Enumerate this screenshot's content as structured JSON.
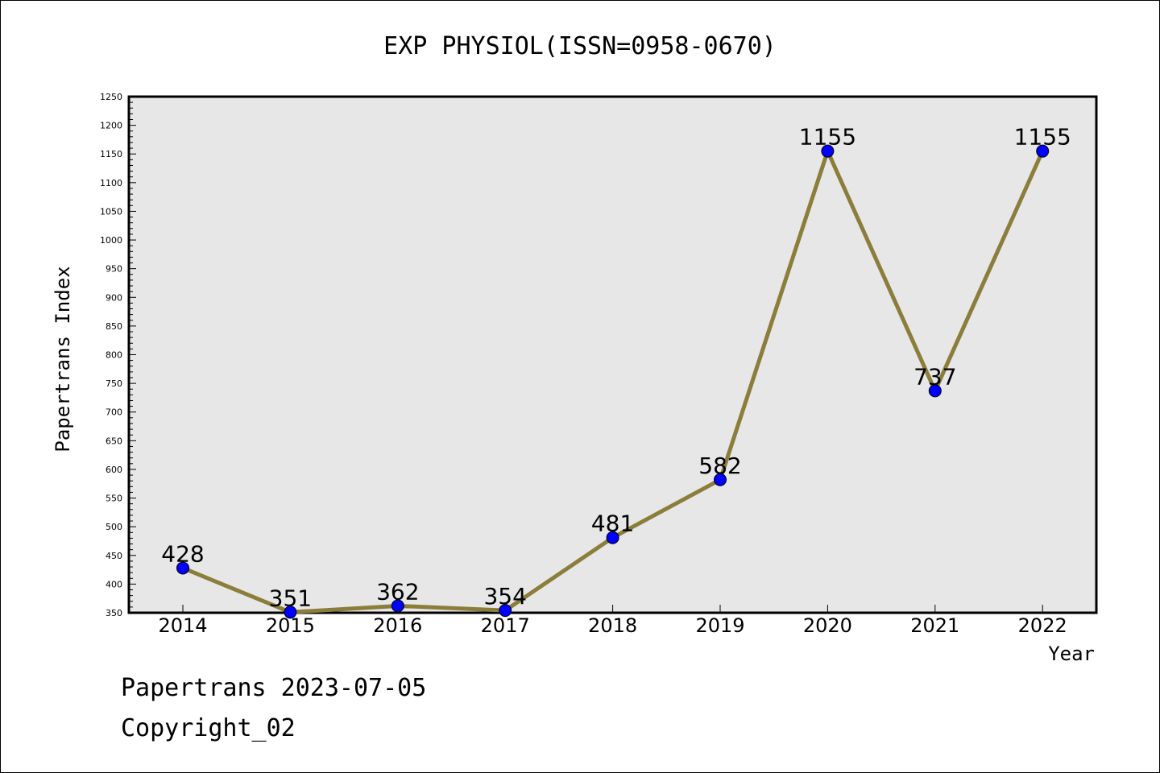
{
  "chart_data": {
    "type": "line",
    "title": "EXP PHYSIOL(ISSN=0958-0670)",
    "xlabel": "Year",
    "ylabel": "Papertrans Index",
    "categories": [
      "2014",
      "2015",
      "2016",
      "2017",
      "2018",
      "2019",
      "2020",
      "2021",
      "2022"
    ],
    "series": [
      {
        "values": [
          428,
          351,
          362,
          354,
          481,
          582,
          1155,
          737,
          1155
        ]
      }
    ],
    "data_labels": [
      "428",
      "351",
      "362",
      "354",
      "481",
      "582",
      "1155",
      "737",
      "1155"
    ],
    "ylim": [
      350,
      1250
    ],
    "yticks": [
      "350",
      "400",
      "450",
      "500",
      "550",
      "600",
      "650",
      "700",
      "750",
      "800",
      "850",
      "900",
      "950",
      "1000",
      "1050",
      "1100",
      "1150",
      "1200",
      "1250"
    ],
    "grid": false,
    "legend": "none",
    "line_color": "#8b7d3a",
    "marker_color": "#0000ff",
    "plot_background": "#e7e7e7"
  },
  "footer": {
    "line1": "Papertrans 2023-07-05",
    "line2": "Copyright_02"
  }
}
